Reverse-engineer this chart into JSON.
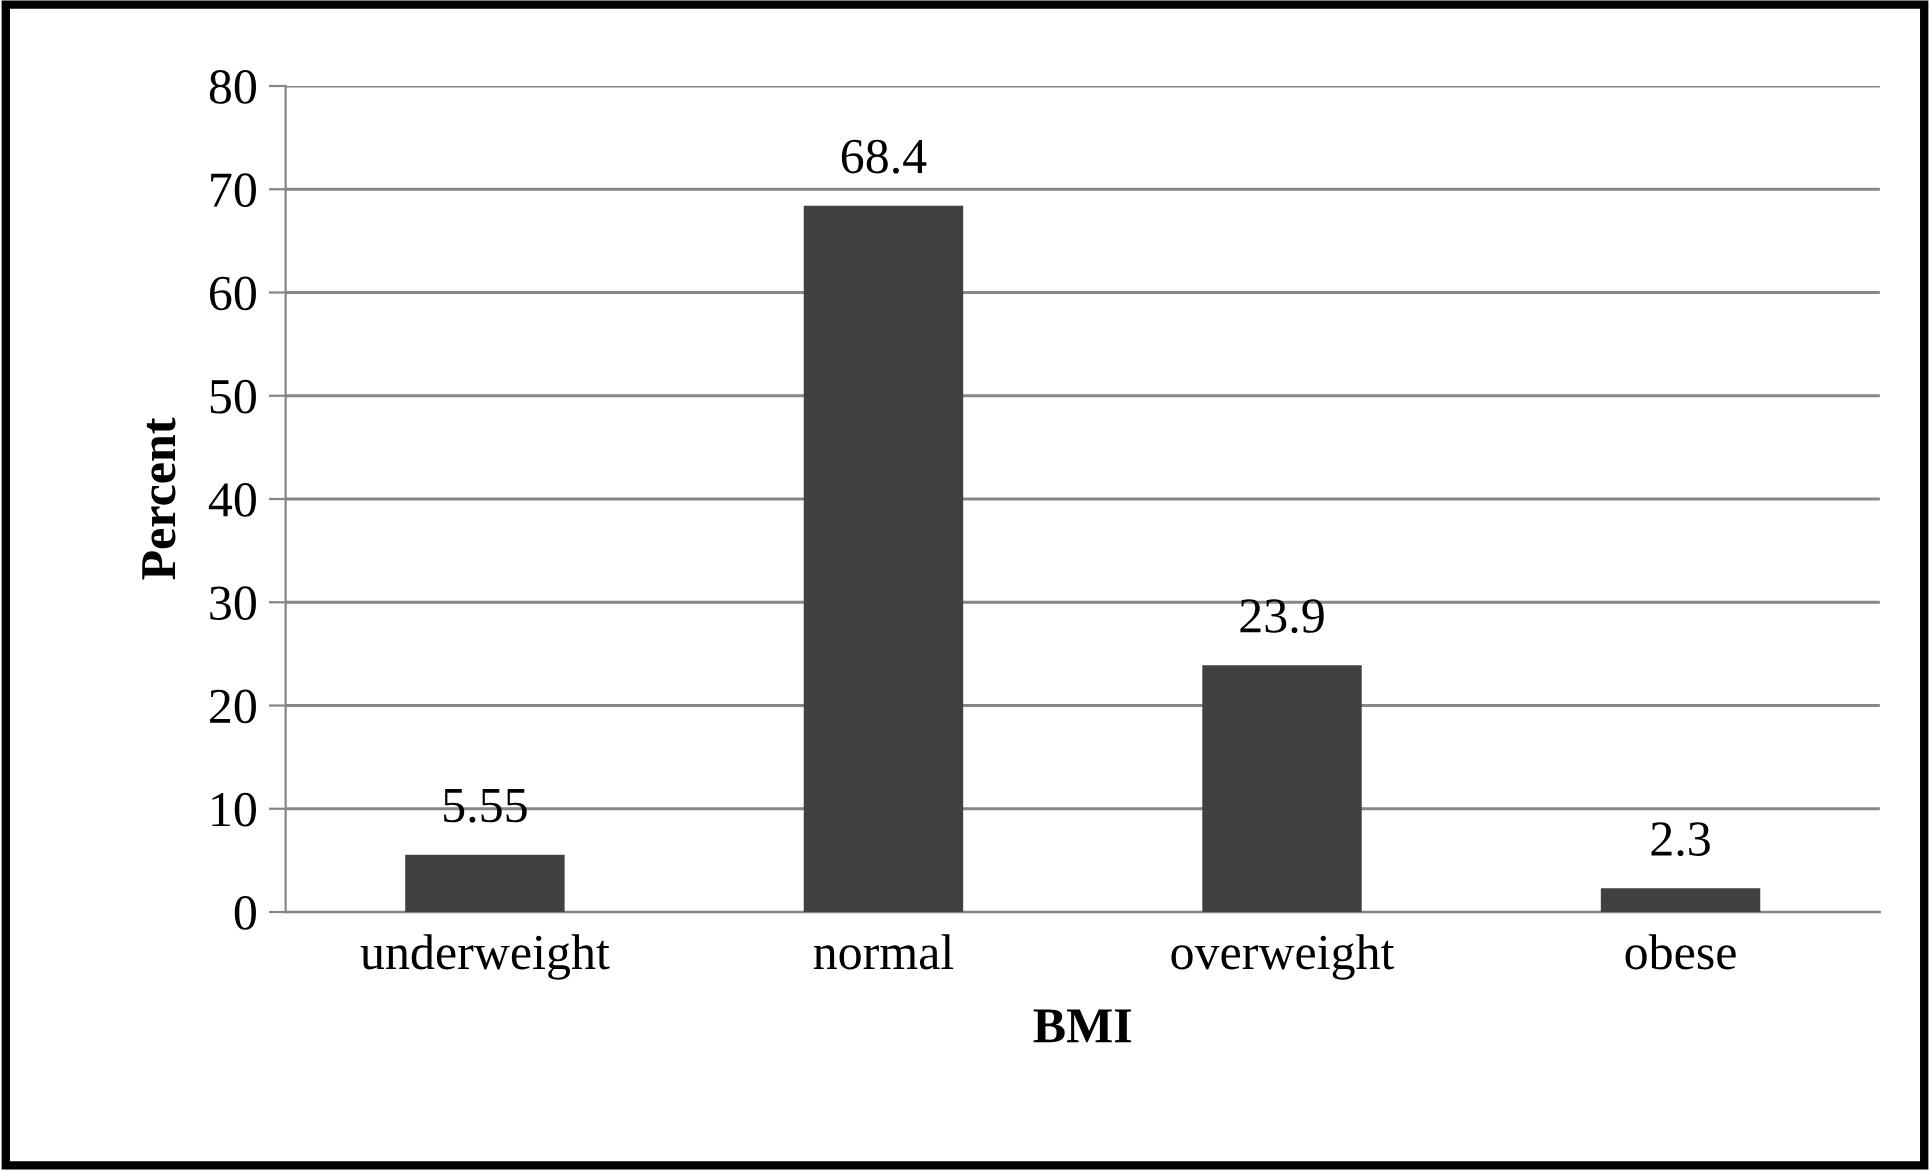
{
  "chart_data": {
    "type": "bar",
    "xlabel": "BMI",
    "ylabel": "Percent",
    "categories": [
      "underweight",
      "normal",
      "overweight",
      "obese"
    ],
    "values": [
      5.55,
      68.4,
      23.9,
      2.3
    ],
    "color": "#404040",
    "ylim": [
      0,
      80
    ],
    "yticks": [
      0,
      10,
      20,
      30,
      40,
      50,
      60,
      70,
      80
    ],
    "grid": "y",
    "data_labels": true
  }
}
